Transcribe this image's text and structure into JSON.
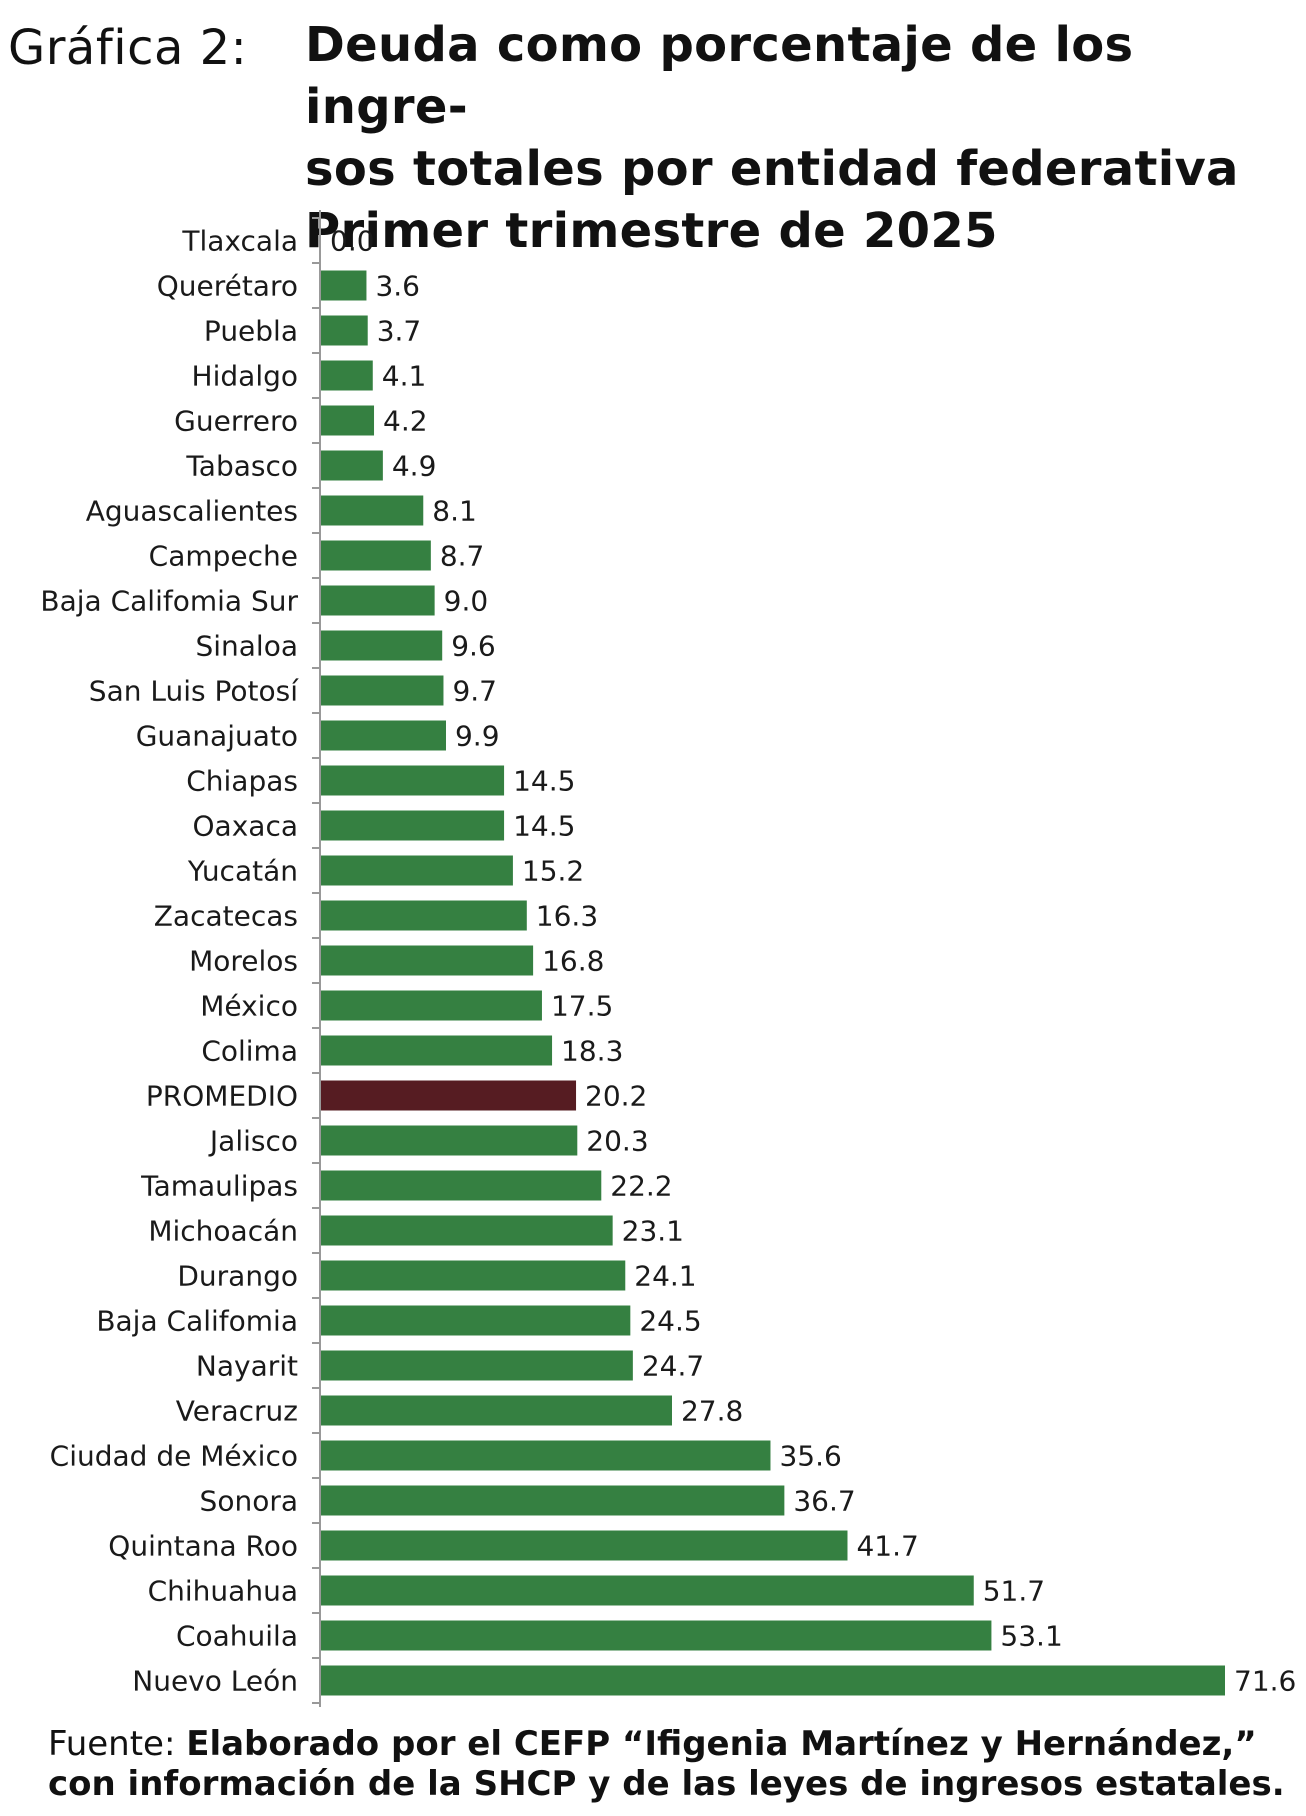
{
  "figure_label": "Gráfica 2:",
  "title_lines": [
    "Deuda como porcentaje de los ingre-",
    "sos totales por entidad federativa",
    "Primer trimestre de 2025"
  ],
  "source": {
    "prefix": "Fuente:",
    "line1": "Elaborado por el CEFP “Ifigenia Martínez y Hernández,”",
    "line2": "con información de la SHCP y de las leyes de ingresos estatales."
  },
  "colors": {
    "bar": "#358041",
    "highlight_bar": "#561c22",
    "axis": "#999999"
  },
  "chart_data": {
    "type": "bar",
    "orientation": "horizontal",
    "title": "Deuda como porcentaje de los ingresos totales por entidad federativa Primer trimestre de 2025",
    "xlabel": "",
    "ylabel": "",
    "xlim": [
      0,
      71.6
    ],
    "grid": false,
    "legend": "none",
    "highlight": "PROMEDIO",
    "categories": [
      "Tlaxcala",
      "Querétaro",
      "Puebla",
      "Hidalgo",
      "Guerrero",
      "Tabasco",
      "Aguascalientes",
      "Campeche",
      "Baja Califomia Sur",
      "Sinaloa",
      "San Luis Potosí",
      "Guanajuato",
      "Chiapas",
      "Oaxaca",
      "Yucatán",
      "Zacatecas",
      "Morelos",
      "México",
      "Colima",
      "PROMEDIO",
      "Jalisco",
      "Tamaulipas",
      "Michoacán",
      "Durango",
      "Baja Califomia",
      "Nayarit",
      "Veracruz",
      "Ciudad de México",
      "Sonora",
      "Quintana Roo",
      "Chihuahua",
      "Coahuila",
      "Nuevo León"
    ],
    "values": [
      0.0,
      3.6,
      3.7,
      4.1,
      4.2,
      4.9,
      8.1,
      8.7,
      9.0,
      9.6,
      9.7,
      9.9,
      14.5,
      14.5,
      15.2,
      16.3,
      16.8,
      17.5,
      18.3,
      20.2,
      20.3,
      22.2,
      23.1,
      24.1,
      24.5,
      24.7,
      27.8,
      35.6,
      36.7,
      41.7,
      51.7,
      53.1,
      71.6
    ],
    "value_labels": [
      "0.0",
      "3.6",
      "3.7",
      "4.1",
      "4.2",
      "4.9",
      "8.1",
      "8.7",
      "9.0",
      "9.6",
      "9.7",
      "9.9",
      "14.5",
      "14.5",
      "15.2",
      "16.3",
      "16.8",
      "17.5",
      "18.3",
      "20.2",
      "20.3",
      "22.2",
      "23.1",
      "24.1",
      "24.5",
      "24.7",
      "27.8",
      "35.6",
      "36.7",
      "41.7",
      "51.7",
      "53.1",
      "71.6"
    ]
  }
}
